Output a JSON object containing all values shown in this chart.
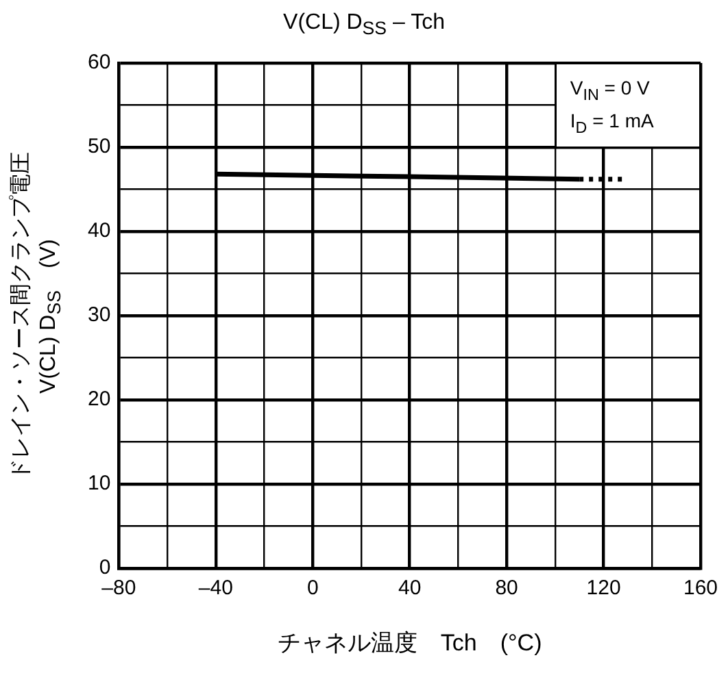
{
  "chart_data": {
    "type": "line",
    "title": "V(CL) D$_{SS}$ – Tch",
    "xlabel": "チャネル温度　Tch　(°C)",
    "ylabel": [
      "ドレイン・ソース間クランプ電圧",
      "V(CL) D$_{SS}$　(V)"
    ],
    "annotations": [
      "V$_{IN}$ = 0 V",
      "I$_{D}$ = 1 mA"
    ],
    "series": [
      {
        "x": [
          -40,
          40,
          110
        ],
        "values": [
          46.8,
          46.5,
          46.2
        ],
        "color": "#000000",
        "line_style": "solid"
      },
      {
        "x": [
          110,
          128
        ],
        "values": [
          46.2,
          46.2
        ],
        "color": "#000000",
        "line_style": "dotted"
      }
    ],
    "xlim": [
      -80,
      160
    ],
    "xticks": [
      {
        "value": -80,
        "label": "–80"
      },
      {
        "value": -60,
        "label": null
      },
      {
        "value": -40,
        "label": "–40"
      },
      {
        "value": -20,
        "label": null
      },
      0,
      {
        "value": 20,
        "label": null
      },
      40,
      {
        "value": 60,
        "label": null
      },
      80,
      {
        "value": 100,
        "label": null
      },
      120,
      {
        "value": 140,
        "label": null
      },
      160
    ],
    "ylim": [
      0,
      60
    ],
    "yticks": [
      0,
      {
        "value": 5,
        "label": null
      },
      10,
      {
        "value": 15,
        "label": null
      },
      20,
      {
        "value": 25,
        "label": null
      },
      30,
      {
        "value": 35,
        "label": null
      },
      40,
      {
        "value": 45,
        "label": null
      },
      50,
      {
        "value": 55,
        "label": null
      },
      60
    ],
    "grid": true,
    "marker": "none",
    "legend": false
  }
}
